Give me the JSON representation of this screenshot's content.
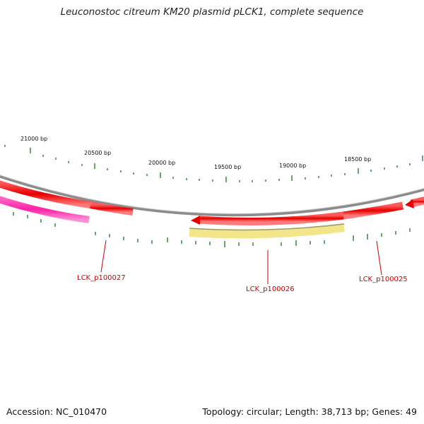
{
  "title": "Leuconostoc citreum KM20 plasmid pLCK1, complete sequence",
  "accession": "Accession: NC_010470",
  "summary": "Topology: circular; Length: 38,713 bp; Genes: 49",
  "scale_labels": [
    "21000 bp",
    "20500 bp",
    "20000 bp",
    "19500 bp",
    "19000 bp",
    "18500 bp"
  ],
  "gene_labels": [
    "LCK_p100027",
    "LCK_p100026",
    "LCK_p100025"
  ],
  "colors": {
    "backbone": "#8c8c8c",
    "gene_red": "#ee0000",
    "gene_pink": "#ff33aa",
    "gene_yellow": "#f2e58a",
    "tick": "#2e7d32",
    "label": "#cc0000"
  }
}
